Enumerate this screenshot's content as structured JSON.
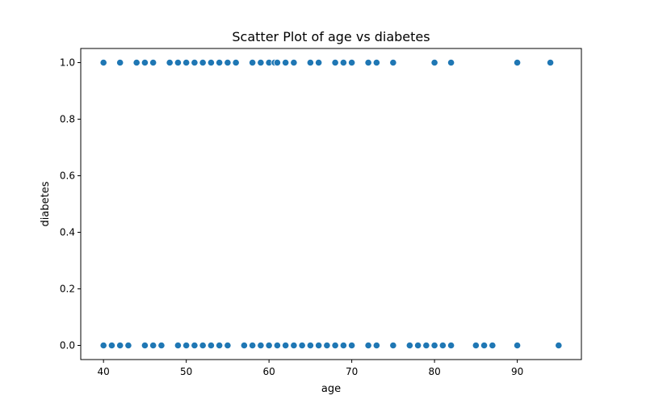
{
  "chart_data": {
    "type": "scatter",
    "title": "Scatter Plot of age vs diabetes",
    "xlabel": "age",
    "ylabel": "diabetes",
    "xlim": [
      37.25,
      97.75
    ],
    "ylim": [
      -0.05,
      1.05
    ],
    "xticks": [
      40,
      50,
      60,
      70,
      80,
      90
    ],
    "yticks": [
      0.0,
      0.2,
      0.4,
      0.6,
      0.8,
      1.0
    ],
    "xtick_labels": [
      "40",
      "50",
      "60",
      "70",
      "80",
      "90"
    ],
    "ytick_labels": [
      "0.0",
      "0.2",
      "0.4",
      "0.6",
      "0.8",
      "1.0"
    ],
    "grid": false,
    "marker_color": "#1f77b4",
    "points": [
      {
        "x": 40,
        "y": 1
      },
      {
        "x": 42,
        "y": 1
      },
      {
        "x": 44,
        "y": 1
      },
      {
        "x": 45,
        "y": 1
      },
      {
        "x": 46,
        "y": 1
      },
      {
        "x": 48,
        "y": 1
      },
      {
        "x": 49,
        "y": 1
      },
      {
        "x": 50,
        "y": 1
      },
      {
        "x": 51,
        "y": 1
      },
      {
        "x": 52,
        "y": 1
      },
      {
        "x": 53,
        "y": 1
      },
      {
        "x": 54,
        "y": 1
      },
      {
        "x": 55,
        "y": 1
      },
      {
        "x": 56,
        "y": 1
      },
      {
        "x": 58,
        "y": 1
      },
      {
        "x": 59,
        "y": 1
      },
      {
        "x": 60,
        "y": 1
      },
      {
        "x": 60.667,
        "y": 1
      },
      {
        "x": 61,
        "y": 1
      },
      {
        "x": 62,
        "y": 1
      },
      {
        "x": 63,
        "y": 1
      },
      {
        "x": 65,
        "y": 1
      },
      {
        "x": 66,
        "y": 1
      },
      {
        "x": 68,
        "y": 1
      },
      {
        "x": 69,
        "y": 1
      },
      {
        "x": 70,
        "y": 1
      },
      {
        "x": 72,
        "y": 1
      },
      {
        "x": 73,
        "y": 1
      },
      {
        "x": 75,
        "y": 1
      },
      {
        "x": 80,
        "y": 1
      },
      {
        "x": 82,
        "y": 1
      },
      {
        "x": 90,
        "y": 1
      },
      {
        "x": 94,
        "y": 1
      },
      {
        "x": 40,
        "y": 0
      },
      {
        "x": 41,
        "y": 0
      },
      {
        "x": 42,
        "y": 0
      },
      {
        "x": 43,
        "y": 0
      },
      {
        "x": 45,
        "y": 0
      },
      {
        "x": 46,
        "y": 0
      },
      {
        "x": 47,
        "y": 0
      },
      {
        "x": 49,
        "y": 0
      },
      {
        "x": 50,
        "y": 0
      },
      {
        "x": 51,
        "y": 0
      },
      {
        "x": 52,
        "y": 0
      },
      {
        "x": 53,
        "y": 0
      },
      {
        "x": 54,
        "y": 0
      },
      {
        "x": 55,
        "y": 0
      },
      {
        "x": 57,
        "y": 0
      },
      {
        "x": 58,
        "y": 0
      },
      {
        "x": 59,
        "y": 0
      },
      {
        "x": 60,
        "y": 0
      },
      {
        "x": 61,
        "y": 0
      },
      {
        "x": 62,
        "y": 0
      },
      {
        "x": 63,
        "y": 0
      },
      {
        "x": 64,
        "y": 0
      },
      {
        "x": 65,
        "y": 0
      },
      {
        "x": 66,
        "y": 0
      },
      {
        "x": 67,
        "y": 0
      },
      {
        "x": 68,
        "y": 0
      },
      {
        "x": 69,
        "y": 0
      },
      {
        "x": 70,
        "y": 0
      },
      {
        "x": 72,
        "y": 0
      },
      {
        "x": 73,
        "y": 0
      },
      {
        "x": 75,
        "y": 0
      },
      {
        "x": 77,
        "y": 0
      },
      {
        "x": 78,
        "y": 0
      },
      {
        "x": 79,
        "y": 0
      },
      {
        "x": 80,
        "y": 0
      },
      {
        "x": 81,
        "y": 0
      },
      {
        "x": 82,
        "y": 0
      },
      {
        "x": 85,
        "y": 0
      },
      {
        "x": 86,
        "y": 0
      },
      {
        "x": 87,
        "y": 0
      },
      {
        "x": 90,
        "y": 0
      },
      {
        "x": 95,
        "y": 0
      }
    ]
  }
}
